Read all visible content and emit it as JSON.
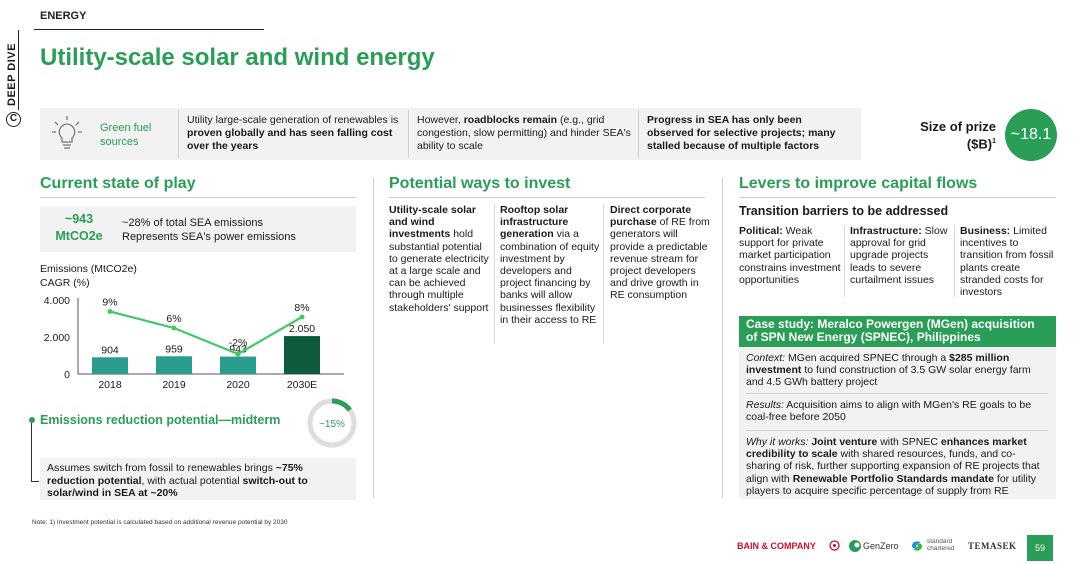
{
  "rail": {
    "side_label": "DEEP DIVE",
    "symbol": "C"
  },
  "header": {
    "eyebrow": "ENERGY",
    "title": "Utility-scale solar and wind energy"
  },
  "band": {
    "label": [
      "Green fuel",
      "sources"
    ],
    "col1": {
      "pre": "Utility large-scale generation of renewables is ",
      "bold": "proven globally and has seen falling cost over the years",
      "post": ""
    },
    "col2": {
      "pre": "However, ",
      "bold": "roadblocks remain",
      "post": " (e.g., grid congestion, slow permitting) and hinder SEA's ability to scale"
    },
    "col3": {
      "bold": "Progress in SEA has only been observed for selective projects; many stalled because of multiple factors"
    },
    "prize_label": [
      "Size of prize",
      "($B)"
    ],
    "prize_sup": "1",
    "prize_value": "~18.1"
  },
  "current": {
    "title": "Current state of play",
    "emissions_value": [
      "~943",
      "MtCO2e"
    ],
    "emissions_desc": [
      "~28% of total SEA emissions",
      "Represents SEA's power emissions"
    ],
    "chart_labels": [
      "Emissions (MtCO2e)",
      "CAGR (%)"
    ],
    "reduction_title": "Emissions reduction potential—midterm",
    "reduction_pct": "~15%",
    "reduction_text": {
      "pre": "Assumes switch from fossil to renewables brings ",
      "bold1": "~75% reduction potential",
      "mid": ", with actual potential ",
      "bold2": "switch-out to solar/wind in SEA at ~20%"
    }
  },
  "chart_data": {
    "type": "bar",
    "title": "",
    "categories": [
      "2018",
      "2019",
      "2020",
      "2030E"
    ],
    "values": [
      904,
      959,
      943,
      2050
    ],
    "value_labels": [
      "904",
      "959",
      "943",
      "2.050"
    ],
    "yticks": [
      0,
      2000,
      4000
    ],
    "ytick_labels": [
      "0",
      "2.000",
      "4.000"
    ],
    "ylim": [
      0,
      4000
    ],
    "ylabel": "Emissions (MtCO2e)",
    "line_series": {
      "name": "CAGR (%)",
      "values": [
        9,
        6,
        -2,
        8
      ],
      "labels": [
        "9%",
        "6%",
        "-2%",
        "8%"
      ]
    },
    "bar_colors": [
      "#2a9d8f",
      "#2a9d8f",
      "#2a9d8f",
      "#0e5a3c"
    ],
    "line_color": "#44c767"
  },
  "invest": {
    "title": "Potential ways to invest",
    "items": [
      {
        "bold": "Utility-scale solar and wind investments",
        "rest": " hold substantial potential to generate electricity at a large scale and can be achieved through multiple stakeholders' support"
      },
      {
        "bold": "Rooftop solar infrastructure generation",
        "rest": " via a combination of equity investment by developers and project financing by banks will allow businesses flexibility in their access to RE"
      },
      {
        "bold": "Direct corporate purchase",
        "rest": " of RE from generators will provide a predictable revenue stream for project developers and drive growth in RE consumption"
      }
    ]
  },
  "levers": {
    "title": "Levers to improve capital flows",
    "barriers_title": "Transition barriers to be addressed",
    "barriers": [
      {
        "bold": "Political:",
        "rest": " Weak support for private market participation constrains investment opportunities"
      },
      {
        "bold": "Infrastructure:",
        "rest": " Slow approval for grid upgrade projects leads to severe curtailment issues"
      },
      {
        "bold": "Business:",
        "rest": " Limited incentives to transition from fossil plants create stranded costs for investors"
      }
    ],
    "case_title": "Case study: Meralco Powergen (MGen) acquisition of SPN New Energy (SPNEC), Philippines",
    "context": {
      "label": "Context:",
      "pre": " MGen acquired SPNEC through a ",
      "bold": "$285 million investment",
      "post": " to fund construction of 3.5 GW solar energy farm and 4.5 GWh battery project"
    },
    "results": {
      "label": "Results:",
      "text": " Acquisition aims to align with MGen's RE goals to be coal-free before 2050"
    },
    "why": {
      "label": "Why it works:",
      "b1": "Joint venture",
      "t1": " with SPNEC ",
      "b2": "enhances market credibility to scale",
      "t2": " with shared resources, funds, and co-sharing of risk, further supporting expansion of RE projects that align with ",
      "b3": "Renewable Portfolio Standards mandate",
      "t3": " for utility players to acquire specific percentage of supply from RE"
    }
  },
  "footer": {
    "note": "Note: 1) Investment potential is calculated based on additional revenue potential by 2030",
    "logos": [
      "BAIN & COMPANY",
      "GenZero",
      "standard chartered",
      "TEMASEK"
    ],
    "page": "59"
  }
}
